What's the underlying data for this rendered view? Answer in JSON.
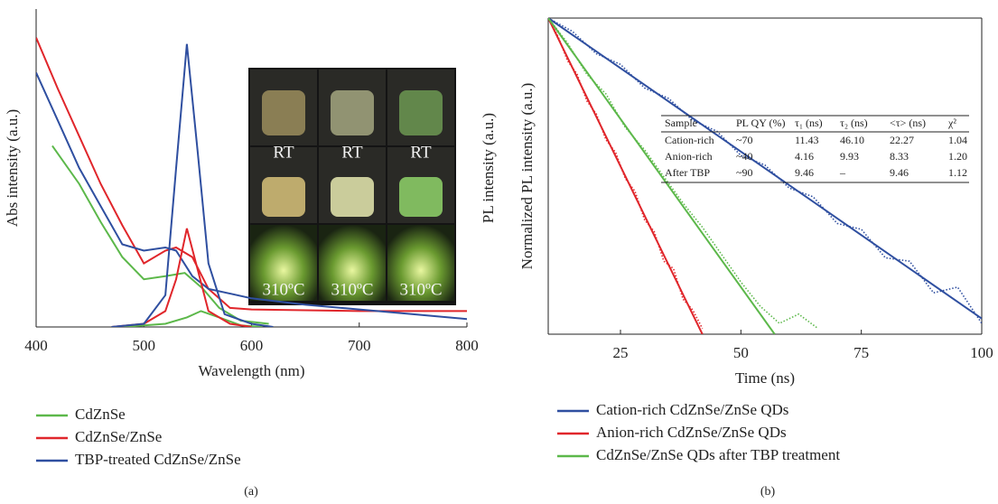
{
  "chart_data": [
    {
      "type": "line",
      "caption": "(a)",
      "xlabel": "Wavelength (nm)",
      "ylabel": "Abs intensity (a.u.)",
      "y2label": "PL intensity (a.u.)",
      "xlim": [
        400,
        800
      ],
      "xticks": [
        400,
        500,
        600,
        700,
        800
      ],
      "ylim": [
        0,
        1
      ],
      "y2lim": [
        0,
        1
      ],
      "inset_labels": [
        "RT",
        "RT",
        "RT",
        "310ºC",
        "310ºC",
        "310ºC"
      ],
      "series": [
        {
          "name": "CdZnSe",
          "color": "#5cb84a",
          "x": [
            415,
            440,
            460,
            480,
            500,
            520,
            538,
            555,
            570,
            590,
            616
          ],
          "values": [
            0.57,
            0.45,
            0.33,
            0.22,
            0.15,
            0.16,
            0.17,
            0.12,
            0.06,
            0.02,
            0.01
          ]
        },
        {
          "name": "CdZnSe/ZnSe",
          "color": "#e0262b",
          "x": [
            400,
            420,
            440,
            460,
            480,
            500,
            520,
            530,
            545,
            560,
            580,
            600,
            700,
            800
          ],
          "values": [
            0.91,
            0.75,
            0.6,
            0.45,
            0.32,
            0.2,
            0.24,
            0.25,
            0.22,
            0.12,
            0.06,
            0.055,
            0.05,
            0.05
          ]
        },
        {
          "name": "TBP-treated CdZnSe/ZnSe",
          "color": "#2f4fa0",
          "x": [
            400,
            420,
            440,
            460,
            480,
            500,
            520,
            530,
            545,
            560,
            600,
            650,
            700,
            750,
            800
          ],
          "values": [
            0.8,
            0.65,
            0.5,
            0.38,
            0.26,
            0.24,
            0.25,
            0.24,
            0.16,
            0.12,
            0.09,
            0.07,
            0.055,
            0.04,
            0.025
          ]
        },
        {
          "color": "#5cb84a",
          "axis": "y2",
          "x": [
            480,
            520,
            540,
            553,
            570,
            590,
            610
          ],
          "values": [
            0,
            0.01,
            0.03,
            0.05,
            0.03,
            0.005,
            0
          ]
        },
        {
          "color": "#e0262b",
          "axis": "y2",
          "x": [
            470,
            500,
            520,
            530,
            540,
            550,
            560,
            580,
            600
          ],
          "values": [
            0,
            0.01,
            0.05,
            0.15,
            0.31,
            0.18,
            0.05,
            0.01,
            0
          ]
        },
        {
          "color": "#2f4fa0",
          "axis": "y2",
          "x": [
            470,
            500,
            520,
            530,
            540,
            550,
            560,
            575,
            600,
            620
          ],
          "values": [
            0,
            0.01,
            0.1,
            0.5,
            0.89,
            0.55,
            0.2,
            0.04,
            0.01,
            0
          ]
        }
      ]
    },
    {
      "type": "line",
      "caption": "(b)",
      "xlabel": "Time (ns)",
      "ylabel": "Normalized PL intensity (a.u.)",
      "log_y": true,
      "xlim": [
        10,
        100
      ],
      "xticks": [
        25,
        50,
        75,
        100
      ],
      "ylim": [
        0.005,
        1
      ],
      "table": {
        "header": [
          "Sample",
          "PL QY (%)",
          "τ₁ (ns)",
          "τ₂ (ns)",
          "<τ> (ns)",
          "χ²"
        ],
        "rows": [
          [
            "Cation-rich",
            "~70",
            "11.43",
            "46.10",
            "22.27",
            "1.04"
          ],
          [
            "Anion-rich",
            "~40",
            "4.16",
            "9.93",
            "8.33",
            "1.20"
          ],
          [
            "After TBP",
            "~90",
            "9.46",
            "–",
            "9.46",
            "1.12"
          ]
        ]
      },
      "series": [
        {
          "name": "Cation-rich CdZnSe/ZnSe QDs",
          "color": "#2f4fa0",
          "line_style": "dotted",
          "x": [
            10,
            15,
            20,
            25,
            30,
            35,
            40,
            45,
            50,
            55,
            60,
            65,
            70,
            75,
            80,
            85,
            90,
            95,
            100
          ],
          "values": [
            1,
            0.8,
            0.55,
            0.46,
            0.31,
            0.26,
            0.18,
            0.15,
            0.1,
            0.085,
            0.058,
            0.05,
            0.032,
            0.029,
            0.018,
            0.017,
            0.01,
            0.011,
            0.006
          ]
        },
        {
          "name": "Anion-rich CdZnSe/ZnSe QDs",
          "color": "#e0262b",
          "line_style": "dotted",
          "x": [
            10,
            12,
            14,
            16,
            18,
            20,
            22,
            24,
            26,
            28,
            30,
            32,
            34,
            36,
            38,
            40,
            42
          ],
          "values": [
            1,
            0.74,
            0.49,
            0.39,
            0.25,
            0.2,
            0.13,
            0.105,
            0.068,
            0.055,
            0.034,
            0.028,
            0.017,
            0.015,
            0.009,
            0.0075,
            0.0055
          ]
        },
        {
          "name": "CdZnSe/ZnSe QDs after TBP treatment",
          "color": "#5cb84a",
          "line_style": "dotted",
          "x": [
            10,
            14,
            18,
            22,
            26,
            30,
            34,
            38,
            42,
            46,
            50,
            54,
            58,
            62,
            66
          ],
          "values": [
            1,
            0.66,
            0.39,
            0.28,
            0.16,
            0.11,
            0.07,
            0.045,
            0.03,
            0.019,
            0.012,
            0.008,
            0.006,
            0.007,
            0.0055
          ]
        },
        {
          "color": "#2f4fa0",
          "line_style": "solid",
          "x": [
            10,
            100
          ],
          "values": [
            1,
            0.0065
          ]
        },
        {
          "color": "#e0262b",
          "line_style": "solid",
          "x": [
            10,
            42
          ],
          "values": [
            1,
            0.005
          ]
        },
        {
          "color": "#5cb84a",
          "line_style": "solid",
          "x": [
            10,
            57
          ],
          "values": [
            1,
            0.005
          ]
        }
      ]
    }
  ]
}
